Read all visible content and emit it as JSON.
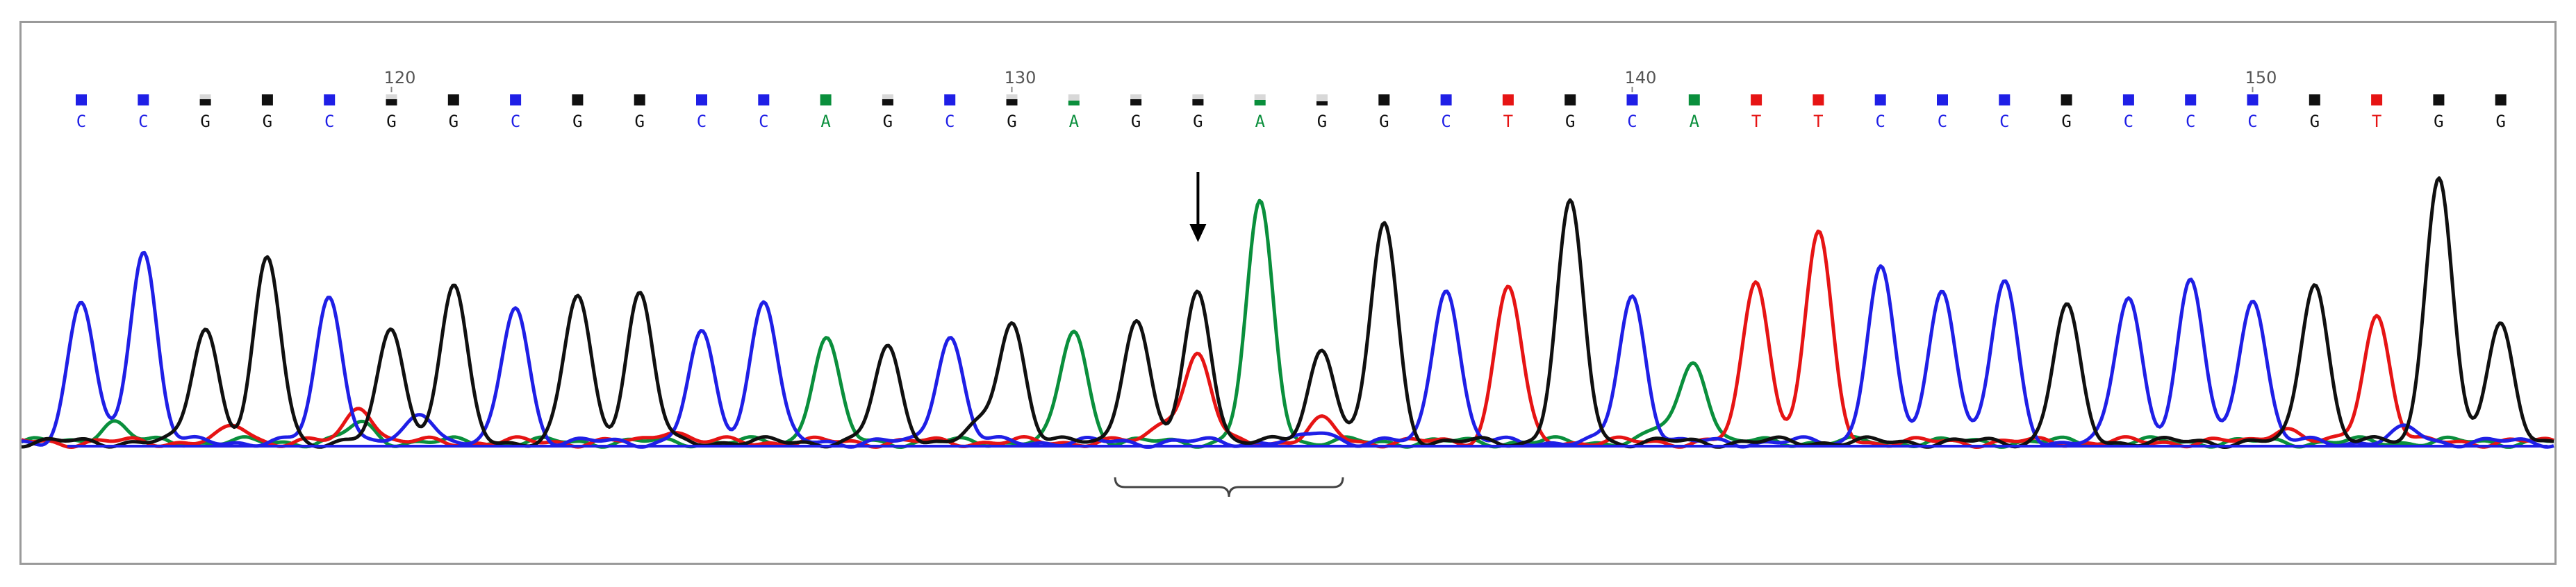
{
  "chart_data": {
    "type": "line",
    "title": "",
    "xlabel": "",
    "ylabel": "",
    "ylim": [
      0,
      100
    ],
    "base_colors": {
      "A": "#0a8f3c",
      "C": "#1f1fe6",
      "G": "#101010",
      "T": "#e61414"
    },
    "quality_color": "#d8d8d8",
    "position_labels": [
      {
        "base_index": 5,
        "text": "120"
      },
      {
        "base_index": 15,
        "text": "130"
      },
      {
        "base_index": 25,
        "text": "140"
      },
      {
        "base_index": 35,
        "text": "150"
      }
    ],
    "bases": [
      {
        "base": "C",
        "quality": 1.0,
        "peak": 53
      },
      {
        "base": "C",
        "quality": 1.0,
        "peak": 74
      },
      {
        "base": "G",
        "quality": 0.55,
        "peak": 44
      },
      {
        "base": "G",
        "quality": 1.0,
        "peak": 70
      },
      {
        "base": "C",
        "quality": 1.0,
        "peak": 56
      },
      {
        "base": "G",
        "quality": 0.55,
        "peak": 43
      },
      {
        "base": "G",
        "quality": 1.0,
        "peak": 60
      },
      {
        "base": "C",
        "quality": 1.0,
        "peak": 52
      },
      {
        "base": "G",
        "quality": 1.0,
        "peak": 56
      },
      {
        "base": "G",
        "quality": 1.0,
        "peak": 57
      },
      {
        "base": "C",
        "quality": 1.0,
        "peak": 41
      },
      {
        "base": "C",
        "quality": 1.0,
        "peak": 55
      },
      {
        "base": "A",
        "quality": 1.0,
        "peak": 40
      },
      {
        "base": "G",
        "quality": 0.55,
        "peak": 36
      },
      {
        "base": "C",
        "quality": 1.0,
        "peak": 41
      },
      {
        "base": "G",
        "quality": 0.55,
        "peak": 46
      },
      {
        "base": "A",
        "quality": 0.45,
        "peak": 43
      },
      {
        "base": "G",
        "quality": 0.55,
        "peak": 47
      },
      {
        "base": "G",
        "quality": 0.55,
        "peak": 58
      },
      {
        "base": "A",
        "quality": 0.5,
        "peak": 91
      },
      {
        "base": "G",
        "quality": 0.35,
        "peak": 36
      },
      {
        "base": "G",
        "quality": 1.0,
        "peak": 84
      },
      {
        "base": "C",
        "quality": 1.0,
        "peak": 60
      },
      {
        "base": "T",
        "quality": 1.0,
        "peak": 60
      },
      {
        "base": "G",
        "quality": 1.0,
        "peak": 91
      },
      {
        "base": "C",
        "quality": 1.0,
        "peak": 56
      },
      {
        "base": "A",
        "quality": 1.0,
        "peak": 31
      },
      {
        "base": "T",
        "quality": 1.0,
        "peak": 62
      },
      {
        "base": "T",
        "quality": 1.0,
        "peak": 80
      },
      {
        "base": "C",
        "quality": 1.0,
        "peak": 67
      },
      {
        "base": "C",
        "quality": 1.0,
        "peak": 59
      },
      {
        "base": "C",
        "quality": 1.0,
        "peak": 61
      },
      {
        "base": "G",
        "quality": 1.0,
        "peak": 52
      },
      {
        "base": "C",
        "quality": 1.0,
        "peak": 56
      },
      {
        "base": "C",
        "quality": 1.0,
        "peak": 61
      },
      {
        "base": "C",
        "quality": 1.0,
        "peak": 56
      },
      {
        "base": "G",
        "quality": 1.0,
        "peak": 62
      },
      {
        "base": "T",
        "quality": 1.0,
        "peak": 49
      },
      {
        "base": "G",
        "quality": 1.0,
        "peak": 103
      },
      {
        "base": "G",
        "quality": 1.0,
        "peak": 45
      }
    ],
    "secondary_peaks": [
      {
        "base": "T",
        "between": [
          4,
          5
        ],
        "peak": 14
      },
      {
        "base": "C",
        "between": [
          5,
          6
        ],
        "peak": 11
      },
      {
        "base": "A",
        "between": [
          4,
          5
        ],
        "peak": 7
      },
      {
        "base": "T",
        "between": [
          17,
          18
        ],
        "peak": 8
      },
      {
        "base": "T",
        "at": 18,
        "peak": 33
      },
      {
        "base": "C",
        "at": 20,
        "peak": 4
      },
      {
        "base": "T",
        "at": 20,
        "peak": 8
      },
      {
        "base": "T",
        "between": [
          2,
          3
        ],
        "peak": 6
      },
      {
        "base": "A",
        "between": [
          0,
          1
        ],
        "peak": 8
      },
      {
        "base": "G",
        "between": [
          14,
          15
        ],
        "peak": 6
      },
      {
        "base": "T",
        "between": [
          9,
          10
        ],
        "peak": 5
      },
      {
        "base": "C",
        "between": [
          37,
          38
        ],
        "peak": 5
      },
      {
        "base": "T",
        "between": [
          35,
          36
        ],
        "peak": 6
      },
      {
        "base": "A",
        "between": [
          25,
          26
        ],
        "peak": 5
      }
    ],
    "annotations": [
      {
        "type": "arrow",
        "base_index": 18
      },
      {
        "type": "bracket",
        "from_base": 17,
        "to_base": 20
      }
    ]
  }
}
